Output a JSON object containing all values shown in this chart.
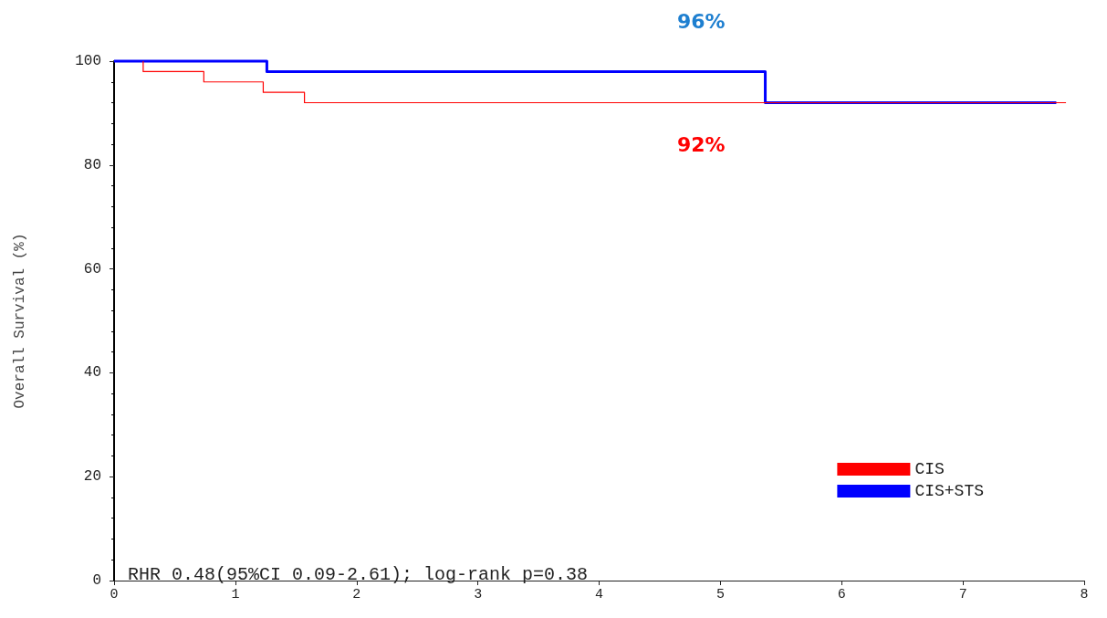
{
  "chart_data": {
    "type": "step",
    "ylabel": "Overall Survival (%)",
    "series": [
      {
        "name": "CIS",
        "color": "#ff0000",
        "x": [
          0.24,
          0.24,
          0.74,
          1.23,
          1.57,
          7.85
        ],
        "values": [
          100,
          98,
          96,
          94,
          92,
          92
        ]
      },
      {
        "name": "CIS+STS",
        "color": "#0000ff",
        "x": [
          0,
          1.26,
          5.37,
          7.77
        ],
        "values": [
          100,
          98,
          92,
          92
        ]
      }
    ],
    "xlim": [
      0,
      8
    ],
    "xticks": [
      0,
      1,
      2,
      3,
      4,
      5,
      6,
      7,
      8
    ],
    "ylim": [
      0,
      100
    ],
    "yticks": [
      0,
      20,
      40,
      60,
      80,
      100
    ],
    "grid": false,
    "legend": "bottom right",
    "annotations": [
      "96%",
      "92%",
      "RHR 0.48(95%CI 0.09-2.61); log-rank p=0.38"
    ]
  }
}
